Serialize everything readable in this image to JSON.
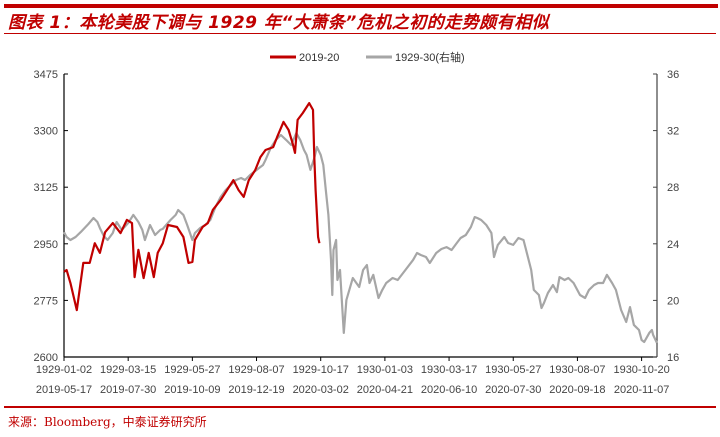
{
  "title": "图表 1：本轮美股下调与 1929 年“大萧条”危机之初的走势颇有相似",
  "source": "来源：Bloomberg，中泰证券研究所",
  "chart_data": {
    "type": "line",
    "title": "图表 1：本轮美股下调与 1929 年“大萧条”危机之初的走势颇有相似",
    "legend_position": "top-center",
    "grid": false,
    "x_range": [
      0,
      462
    ],
    "x_tick_index": [
      0,
      50,
      100,
      150,
      200,
      250,
      300,
      350,
      400,
      450
    ],
    "x_tick_labels_1929": [
      "1929-01-02",
      "1929-03-15",
      "1929-05-27",
      "1929-08-07",
      "1929-10-17",
      "1930-01-03",
      "1930-03-17",
      "1930-05-27",
      "1930-08-07",
      "1930-10-20"
    ],
    "x_tick_labels_2019": [
      "2019-05-17",
      "2019-07-30",
      "2019-10-09",
      "2019-12-19",
      "2020-03-02",
      "2020-04-21",
      "2020-06-10",
      "2020-07-30",
      "2020-09-18",
      "2020-11-07"
    ],
    "y_left": {
      "range": [
        2600,
        3475
      ],
      "ticks": [
        "3475",
        "3300",
        "3125",
        "2950",
        "2775",
        "2600"
      ]
    },
    "y_right": {
      "range": [
        16,
        36
      ],
      "ticks": [
        "36",
        "32",
        "28",
        "24",
        "20",
        "16"
      ]
    },
    "series": [
      {
        "name": "2019-20",
        "axis": "left",
        "color": "#c00000",
        "x": [
          0,
          2,
          5,
          10,
          15,
          20,
          24,
          28,
          32,
          38,
          44,
          49,
          53,
          55,
          58,
          62,
          66,
          70,
          73,
          77,
          81,
          88,
          93,
          97,
          100,
          102,
          108,
          112,
          116,
          122,
          127,
          132,
          136,
          140,
          144,
          149,
          153,
          157,
          163,
          166,
          171,
          175,
          178,
          180,
          182,
          186,
          191,
          194,
          195,
          196,
          198,
          199
        ],
        "values": [
          2863,
          2869,
          2829,
          2745,
          2891,
          2891,
          2952,
          2922,
          2986,
          3014,
          2983,
          3024,
          3014,
          2847,
          2931,
          2844,
          2922,
          2847,
          2922,
          2952,
          3008,
          3002,
          2971,
          2891,
          2894,
          2962,
          3002,
          3014,
          3055,
          3085,
          3116,
          3147,
          3116,
          3095,
          3147,
          3178,
          3218,
          3240,
          3249,
          3280,
          3327,
          3302,
          3262,
          3231,
          3333,
          3354,
          3385,
          3364,
          3218,
          3116,
          2971,
          2952
        ]
      },
      {
        "name": "1929-30(右轴)",
        "axis": "right",
        "color": "#a6a6a6",
        "x": [
          0,
          2,
          5,
          9,
          13,
          19,
          23,
          26,
          28,
          31,
          34,
          38,
          41,
          45,
          50,
          54,
          58,
          61,
          63,
          67,
          71,
          75,
          77,
          83,
          87,
          89,
          93,
          96,
          100,
          102,
          106,
          110,
          114,
          118,
          122,
          126,
          130,
          134,
          138,
          141,
          145,
          152,
          155,
          157,
          161,
          165,
          169,
          173,
          177,
          181,
          184,
          187,
          189,
          192,
          195,
          197,
          200,
          202,
          204,
          206,
          208,
          209,
          210,
          212,
          213,
          215,
          218,
          220,
          225,
          230,
          233,
          236,
          238,
          241,
          245,
          248,
          251,
          256,
          260,
          266,
          272,
          275,
          278,
          282,
          285,
          290,
          294,
          298,
          302,
          306,
          309,
          313,
          317,
          320,
          322,
          325,
          329,
          333,
          335,
          338,
          343,
          346,
          350,
          354,
          358,
          360,
          364,
          366,
          370,
          372,
          374,
          377,
          381,
          384,
          386,
          390,
          393,
          397,
          402,
          406,
          409,
          413,
          416,
          420,
          423,
          427,
          430,
          434,
          438,
          441,
          444,
          448,
          450,
          452,
          456,
          458,
          459,
          462
        ],
        "values": [
          24.83,
          24.48,
          24.27,
          24.48,
          24.83,
          25.4,
          25.82,
          25.54,
          25.11,
          24.55,
          24.27,
          24.76,
          25.54,
          24.98,
          25.47,
          26.04,
          25.54,
          24.98,
          24.27,
          25.33,
          24.62,
          24.98,
          25.05,
          25.68,
          26.04,
          26.39,
          26.04,
          25.33,
          24.27,
          24.76,
          25.11,
          25.33,
          25.68,
          26.6,
          27.31,
          27.8,
          28.16,
          28.51,
          28.65,
          28.51,
          28.86,
          29.36,
          29.57,
          29.92,
          30.77,
          31.34,
          31.69,
          31.34,
          30.98,
          31.83,
          31.34,
          30.63,
          30.28,
          29.22,
          30.06,
          30.84,
          30.28,
          29.57,
          27.8,
          26.04,
          22.86,
          20.38,
          23.56,
          24.27,
          21.44,
          22.15,
          17.7,
          20.03,
          21.58,
          20.95,
          22.15,
          22.5,
          21.23,
          21.8,
          20.17,
          20.74,
          21.23,
          21.58,
          21.44,
          22.15,
          22.86,
          23.35,
          23.21,
          23.07,
          22.64,
          23.35,
          23.63,
          23.77,
          23.56,
          24.06,
          24.41,
          24.62,
          25.19,
          25.89,
          25.82,
          25.68,
          25.33,
          24.76,
          23.07,
          23.92,
          24.48,
          24.06,
          23.92,
          24.41,
          24.27,
          23.56,
          22.15,
          20.74,
          20.38,
          19.46,
          19.82,
          20.52,
          21.09,
          20.59,
          21.65,
          21.44,
          21.58,
          21.23,
          20.38,
          20.17,
          20.74,
          21.09,
          21.23,
          21.23,
          21.8,
          21.23,
          20.74,
          19.32,
          18.47,
          19.53,
          18.26,
          17.91,
          17.2,
          17.06,
          17.7,
          17.91,
          17.56,
          16.99
        ]
      }
    ]
  }
}
